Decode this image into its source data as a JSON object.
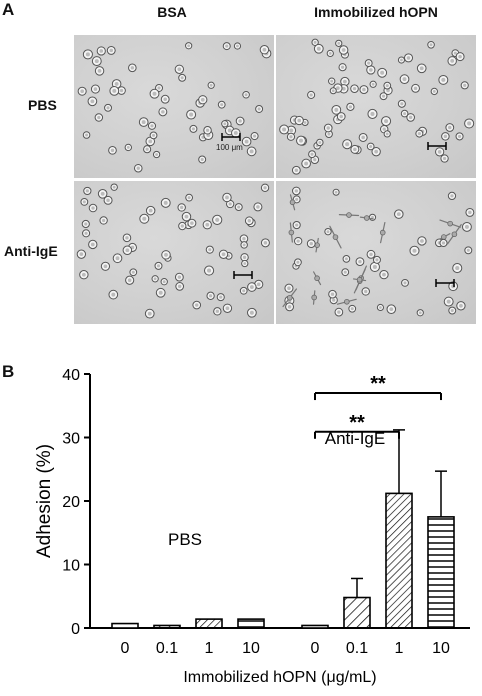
{
  "panel_a": {
    "letter": "A",
    "columns": [
      "BSA",
      "Immobilized hOPN"
    ],
    "rows": [
      "PBS",
      "Anti-IgE"
    ],
    "scale_bar_label": "100 μm"
  },
  "panel_b": {
    "letter": "B"
  },
  "chart_data": {
    "type": "bar",
    "ylabel": "Adhesion (%)",
    "xlabel": "Immobilized hOPN (μg/mL)",
    "ylim": [
      0,
      40
    ],
    "yticks": [
      "0",
      "10",
      "20",
      "30",
      "40"
    ],
    "groups": [
      {
        "label": "PBS",
        "categories": [
          "0",
          "0.1",
          "1",
          "10"
        ],
        "values": [
          0.7,
          0.4,
          1.4,
          1.4
        ],
        "errors": [
          0.3,
          0.2,
          0.3,
          0.3
        ]
      },
      {
        "label": "Anti-IgE",
        "categories": [
          "0",
          "0.1",
          "1",
          "10"
        ],
        "values": [
          0.4,
          4.8,
          21.2,
          17.5
        ],
        "errors": [
          0.2,
          3.0,
          10.0,
          7.2
        ]
      }
    ],
    "fill_patterns": [
      "none",
      "diagonal-hatch",
      "diagonal-hatch-dense",
      "horizontal-stripes"
    ],
    "significance": [
      {
        "from": "0",
        "to": "1",
        "label": "**"
      },
      {
        "from": "0",
        "to": "10",
        "label": "**"
      }
    ]
  }
}
